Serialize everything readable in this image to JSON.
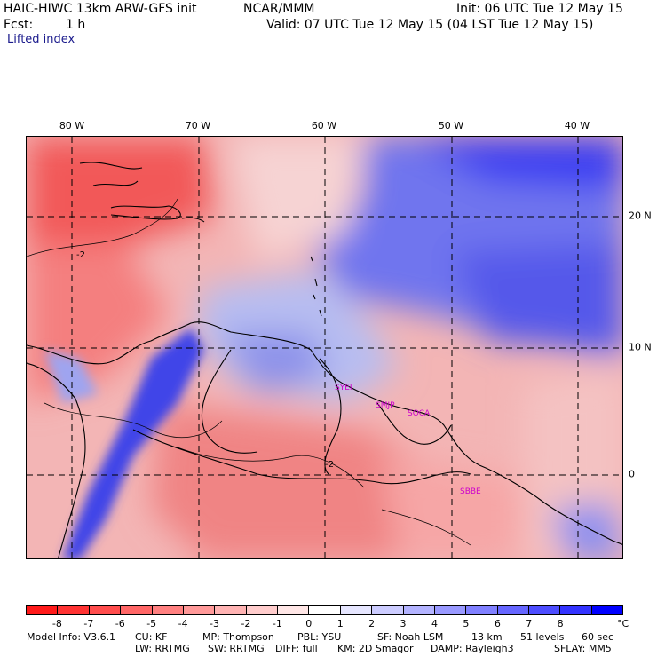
{
  "header": {
    "model": "HAIC-HIWC 13km ARW-GFS init",
    "org": "NCAR/MMM",
    "init": "Init: 06 UTC Tue 12 May 15",
    "fcst_label": "Fcst:",
    "fcst_value": "1 h",
    "valid": "Valid: 07 UTC Tue 12 May 15 (04 LST Tue 12 May 15)",
    "field": "Lifted index"
  },
  "map": {
    "lon_labels": [
      "80 W",
      "70 W",
      "60 W",
      "50 W",
      "40 W"
    ],
    "lat_labels": [
      "20 N",
      "10 N",
      "0"
    ],
    "contour_labels": [
      "-2",
      "-2"
    ],
    "stations": [
      "SYEI",
      "SMJP",
      "SOCA",
      "SBBE"
    ],
    "colors": {
      "land_border": "#000000",
      "grid": "#000000",
      "station": "#cc00cc"
    }
  },
  "colorbar": {
    "labels": [
      "-8",
      "-7",
      "-6",
      "-5",
      "-4",
      "-3",
      "-2",
      "-1",
      "0",
      "1",
      "2",
      "3",
      "4",
      "5",
      "6",
      "7",
      "8"
    ],
    "unit": "°C",
    "colors": [
      "#ff1a1a",
      "#ff3333",
      "#ff4d4d",
      "#ff6666",
      "#ff8080",
      "#ff9999",
      "#ffb3b3",
      "#ffcccc",
      "#ffe6e6",
      "#ffffff",
      "#e6e6ff",
      "#ccccff",
      "#b3b3ff",
      "#9999ff",
      "#8080ff",
      "#6666ff",
      "#4d4dff",
      "#3333ff",
      "#0000ff"
    ]
  },
  "footer": {
    "line1": [
      "Model Info: V3.6.1",
      "CU: KF",
      "MP: Thompson",
      "PBL: YSU",
      "SF: Noah LSM",
      "13 km",
      "51 levels",
      "60 sec"
    ],
    "line2": [
      "LW: RRTMG",
      "SW: RRTMG",
      "DIFF: full",
      "KM: 2D Smagor",
      "DAMP: Rayleigh3",
      "SFLAY: MM5"
    ]
  }
}
